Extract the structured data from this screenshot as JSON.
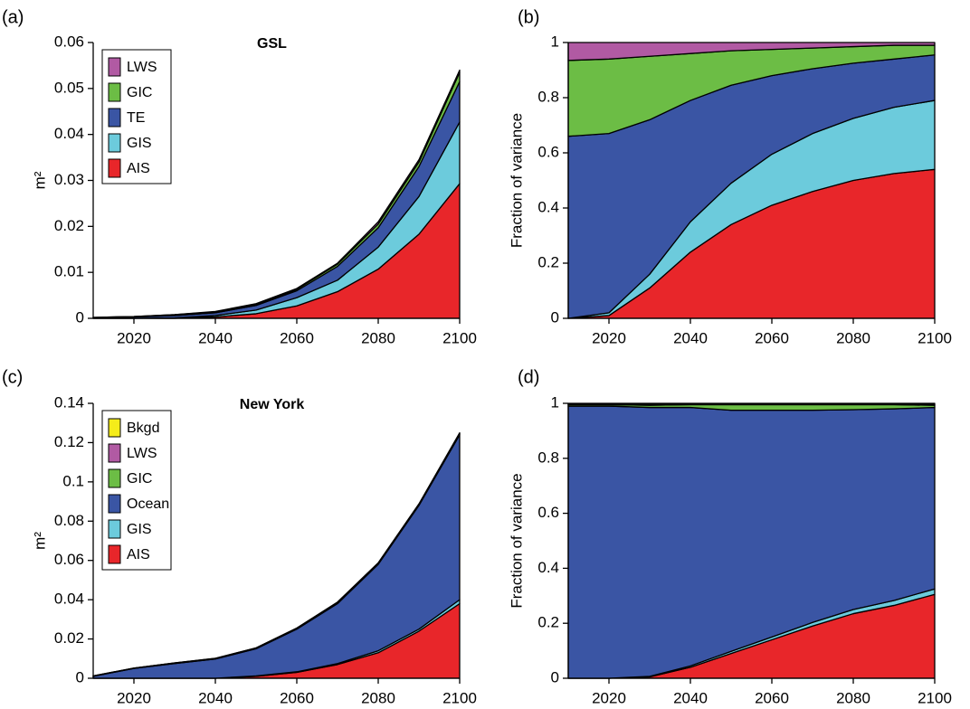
{
  "chart_data": [
    {
      "type": "area",
      "panel_label": "(a)",
      "title": "GSL",
      "ylabel": "m²",
      "x": [
        2010,
        2020,
        2030,
        2040,
        2050,
        2060,
        2070,
        2080,
        2090,
        2100
      ],
      "xlim": [
        2010,
        2100
      ],
      "xticks": [
        2020,
        2040,
        2060,
        2080,
        2100
      ],
      "ylim": [
        0,
        0.06
      ],
      "yticks": [
        0,
        0.01,
        0.02,
        0.03,
        0.04,
        0.05,
        0.06
      ],
      "legend": "upper left",
      "series": [
        {
          "name": "AIS",
          "color": "#e8262a",
          "values": [
            0,
            0,
            0,
            0.0003,
            0.001,
            0.0027,
            0.0058,
            0.0107,
            0.0183,
            0.0293
          ]
        },
        {
          "name": "GIS",
          "color": "#6ccbdc",
          "values": [
            0,
            0,
            0.0001,
            0.0003,
            0.0008,
            0.0018,
            0.0025,
            0.0048,
            0.0082,
            0.0134
          ]
        },
        {
          "name": "TE",
          "color": "#3a55a4",
          "values": [
            0.0001,
            0.0003,
            0.0005,
            0.0006,
            0.001,
            0.0015,
            0.003,
            0.0042,
            0.0065,
            0.0088
          ]
        },
        {
          "name": "GIC",
          "color": "#6cbd45",
          "values": [
            0.0001,
            0.0001,
            0.0002,
            0.0002,
            0.0002,
            0.0003,
            0.0005,
            0.0008,
            0.001,
            0.002
          ]
        },
        {
          "name": "LWS",
          "color": "#b15aa3",
          "values": [
            0,
            0,
            0,
            0.0001,
            0.0002,
            0.0002,
            0.0002,
            0.0005,
            0.0005,
            0.0005
          ]
        }
      ]
    },
    {
      "type": "area",
      "panel_label": "(b)",
      "ylabel": "Fraction of variance",
      "x": [
        2010,
        2020,
        2030,
        2040,
        2050,
        2060,
        2070,
        2080,
        2090,
        2100
      ],
      "xlim": [
        2010,
        2100
      ],
      "xticks": [
        2020,
        2040,
        2060,
        2080,
        2100
      ],
      "ylim": [
        0,
        1
      ],
      "yticks": [
        0,
        0.2,
        0.4,
        0.6,
        0.8,
        1
      ],
      "series": [
        {
          "color": "#e8262a",
          "values": [
            0,
            0.01,
            0.11,
            0.24,
            0.34,
            0.41,
            0.46,
            0.5,
            0.525,
            0.54
          ]
        },
        {
          "color": "#6ccbdc",
          "values": [
            0,
            0.01,
            0.05,
            0.11,
            0.15,
            0.185,
            0.21,
            0.225,
            0.24,
            0.25
          ]
        },
        {
          "color": "#3a55a4",
          "values": [
            0.66,
            0.65,
            0.56,
            0.44,
            0.355,
            0.285,
            0.235,
            0.2,
            0.175,
            0.165
          ]
        },
        {
          "color": "#6cbd45",
          "values": [
            0.275,
            0.27,
            0.23,
            0.17,
            0.125,
            0.095,
            0.075,
            0.06,
            0.05,
            0.035
          ]
        },
        {
          "color": "#b15aa3",
          "values": [
            0.065,
            0.06,
            0.05,
            0.04,
            0.03,
            0.025,
            0.02,
            0.015,
            0.01,
            0.01
          ]
        }
      ]
    },
    {
      "type": "area",
      "panel_label": "(c)",
      "title": "New York",
      "ylabel": "m²",
      "x": [
        2010,
        2020,
        2030,
        2040,
        2050,
        2060,
        2070,
        2080,
        2090,
        2100
      ],
      "xlim": [
        2010,
        2100
      ],
      "xticks": [
        2020,
        2040,
        2060,
        2080,
        2100
      ],
      "ylim": [
        0,
        0.14
      ],
      "yticks": [
        0,
        0.02,
        0.04,
        0.06,
        0.08,
        0.1,
        0.12,
        0.14
      ],
      "legend": "upper left",
      "series": [
        {
          "name": "AIS",
          "color": "#e8262a",
          "values": [
            0,
            0,
            0,
            0,
            0.001,
            0.003,
            0.007,
            0.013,
            0.024,
            0.038
          ]
        },
        {
          "name": "GIS",
          "color": "#6ccbdc",
          "values": [
            0,
            0,
            0,
            0,
            0.0002,
            0.0003,
            0.0005,
            0.001,
            0.001,
            0.002
          ]
        },
        {
          "name": "Ocean",
          "color": "#3a55a4",
          "values": [
            0.001,
            0.005,
            0.0075,
            0.0098,
            0.0138,
            0.0217,
            0.0305,
            0.044,
            0.063,
            0.084
          ]
        },
        {
          "name": "GIC",
          "color": "#6cbd45",
          "values": [
            0.0001,
            0.0001,
            0.0002,
            0.0002,
            0.0003,
            0.0004,
            0.0005,
            0.0005,
            0.0005,
            0.0006
          ]
        },
        {
          "name": "LWS",
          "color": "#b15aa3",
          "values": [
            0.0001,
            0.0001,
            0.0001,
            0.0001,
            0.0001,
            0.0001,
            0.0002,
            0.0002,
            0.0002,
            0.0002
          ]
        },
        {
          "name": "Bkgd",
          "color": "#f5ec1a",
          "values": [
            0,
            0,
            0,
            0.0001,
            0.0001,
            0.0001,
            0.0001,
            0.0001,
            0.0001,
            0.0002
          ]
        }
      ]
    },
    {
      "type": "area",
      "panel_label": "(d)",
      "ylabel": "Fraction of variance",
      "x": [
        2010,
        2020,
        2030,
        2040,
        2050,
        2060,
        2070,
        2080,
        2090,
        2100
      ],
      "xlim": [
        2010,
        2100
      ],
      "xticks": [
        2020,
        2040,
        2060,
        2080,
        2100
      ],
      "ylim": [
        0,
        1
      ],
      "yticks": [
        0,
        0.2,
        0.4,
        0.6,
        0.8,
        1
      ],
      "series": [
        {
          "color": "#e8262a",
          "values": [
            0,
            0,
            0.005,
            0.04,
            0.09,
            0.14,
            0.19,
            0.235,
            0.265,
            0.305
          ]
        },
        {
          "color": "#6ccbdc",
          "values": [
            0,
            0,
            0.002,
            0.005,
            0.008,
            0.01,
            0.013,
            0.015,
            0.018,
            0.02
          ]
        },
        {
          "color": "#3a55a4",
          "values": [
            0.99,
            0.99,
            0.978,
            0.94,
            0.877,
            0.825,
            0.772,
            0.727,
            0.697,
            0.66
          ]
        },
        {
          "color": "#6cbd45",
          "values": [
            0.005,
            0.005,
            0.008,
            0.01,
            0.02,
            0.02,
            0.02,
            0.018,
            0.015,
            0.008
          ]
        },
        {
          "color": "#b15aa3",
          "values": [
            0.003,
            0.003,
            0.004,
            0.003,
            0.003,
            0.003,
            0.003,
            0.003,
            0.003,
            0.003
          ]
        },
        {
          "color": "#f5ec1a",
          "values": [
            0.002,
            0.002,
            0.003,
            0.002,
            0.002,
            0.002,
            0.002,
            0.002,
            0.002,
            0.004
          ]
        }
      ]
    }
  ]
}
